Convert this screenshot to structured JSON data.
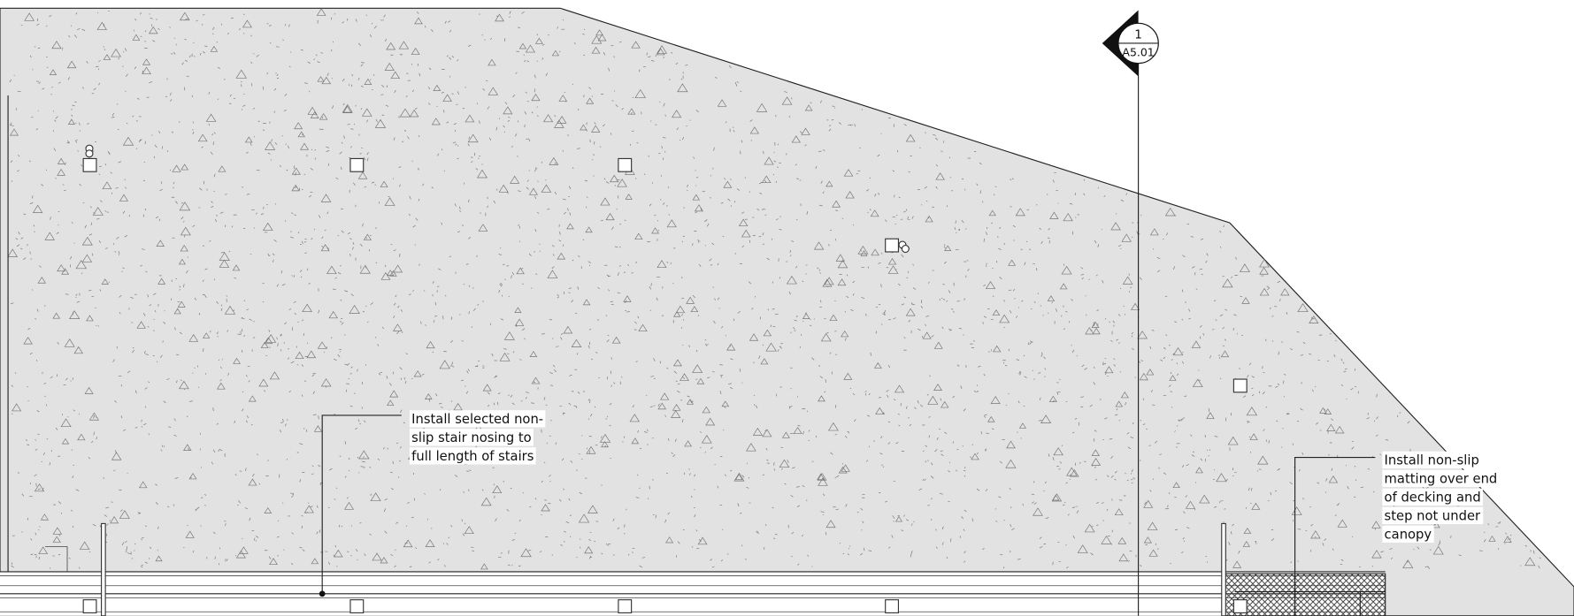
{
  "section_marker": {
    "number": "1",
    "sheet": "A5.01"
  },
  "annotations": [
    {
      "lines": [
        "Install selected non-",
        "slip stair nosing to",
        "full length of stairs"
      ]
    },
    {
      "lines": [
        "Install non-slip",
        "matting over end",
        "of decking and",
        "step not under",
        "canopy"
      ]
    }
  ]
}
